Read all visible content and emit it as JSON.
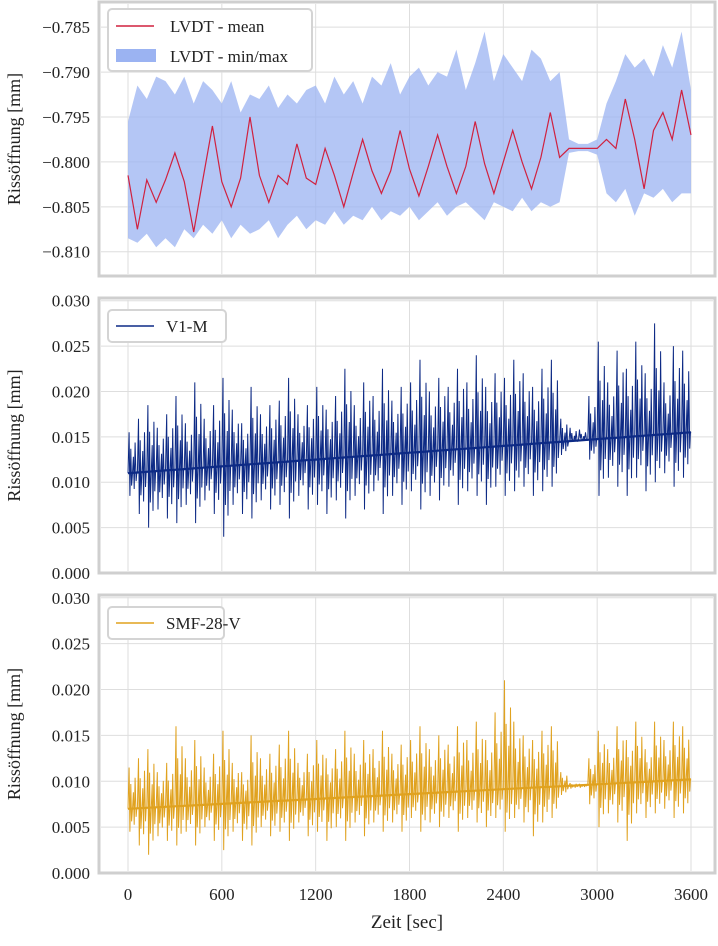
{
  "chart_data": [
    {
      "type": "line",
      "panel": "top",
      "ylabel": "Rissöffnung [mm]",
      "xlabel": "",
      "xlim": [
        0,
        3600
      ],
      "ylim": [
        -0.8127,
        -0.7822
      ],
      "yticks": [
        -0.785,
        -0.79,
        -0.795,
        -0.8,
        -0.805,
        -0.81
      ],
      "ytick_labels": [
        "−0.785",
        "−0.790",
        "−0.795",
        "−0.800",
        "−0.805",
        "−0.810"
      ],
      "grid": true,
      "legend_position": "top-left",
      "legend": [
        "LVDT - mean",
        "LVDT - min/max"
      ],
      "colors": {
        "mean": "#d0213f",
        "band": "#9bb3f2"
      },
      "x_step_sec": 60,
      "series": [
        {
          "name": "LVDT - mean",
          "values": [
            -0.8015,
            -0.8075,
            -0.802,
            -0.8045,
            -0.802,
            -0.799,
            -0.8022,
            -0.8078,
            -0.8018,
            -0.796,
            -0.8022,
            -0.805,
            -0.8018,
            -0.795,
            -0.8015,
            -0.8045,
            -0.8015,
            -0.8025,
            -0.798,
            -0.8018,
            -0.8025,
            -0.7985,
            -0.8015,
            -0.805,
            -0.8012,
            -0.7975,
            -0.801,
            -0.8035,
            -0.801,
            -0.7965,
            -0.8008,
            -0.8038,
            -0.8005,
            -0.797,
            -0.8005,
            -0.8035,
            -0.8005,
            -0.7955,
            -0.8002,
            -0.8035,
            -0.8,
            -0.7965,
            -0.8,
            -0.803,
            -0.7995,
            -0.7945,
            -0.7995,
            -0.7985,
            -0.7985,
            -0.7985,
            -0.7985,
            -0.7975,
            -0.7985,
            -0.793,
            -0.7975,
            -0.803,
            -0.7965,
            -0.7945,
            -0.7975,
            -0.792,
            -0.797
          ]
        },
        {
          "name": "LVDT - max",
          "values": [
            -0.7955,
            -0.7915,
            -0.793,
            -0.7905,
            -0.791,
            -0.7925,
            -0.7905,
            -0.7935,
            -0.791,
            -0.792,
            -0.7935,
            -0.791,
            -0.7945,
            -0.7925,
            -0.793,
            -0.7915,
            -0.794,
            -0.7925,
            -0.7935,
            -0.792,
            -0.7915,
            -0.7935,
            -0.7905,
            -0.7925,
            -0.791,
            -0.7935,
            -0.7905,
            -0.7915,
            -0.789,
            -0.7925,
            -0.7905,
            -0.7895,
            -0.7915,
            -0.79,
            -0.7905,
            -0.7875,
            -0.792,
            -0.789,
            -0.7855,
            -0.791,
            -0.788,
            -0.7895,
            -0.791,
            -0.7875,
            -0.7885,
            -0.791,
            -0.79,
            -0.7975,
            -0.798,
            -0.798,
            -0.7975,
            -0.7935,
            -0.791,
            -0.788,
            -0.7895,
            -0.7885,
            -0.7905,
            -0.787,
            -0.7895,
            -0.7855,
            -0.792
          ]
        },
        {
          "name": "LVDT - min",
          "values": [
            -0.8085,
            -0.809,
            -0.808,
            -0.8095,
            -0.8085,
            -0.8095,
            -0.8075,
            -0.8085,
            -0.807,
            -0.808,
            -0.8065,
            -0.8085,
            -0.807,
            -0.808,
            -0.8075,
            -0.8065,
            -0.8085,
            -0.807,
            -0.806,
            -0.8075,
            -0.8065,
            -0.807,
            -0.8055,
            -0.807,
            -0.806,
            -0.8065,
            -0.805,
            -0.8065,
            -0.8055,
            -0.806,
            -0.805,
            -0.8065,
            -0.8055,
            -0.8045,
            -0.806,
            -0.805,
            -0.8045,
            -0.8055,
            -0.8065,
            -0.8045,
            -0.805,
            -0.8055,
            -0.804,
            -0.8055,
            -0.8045,
            -0.805,
            -0.8045,
            -0.799,
            -0.7988,
            -0.7988,
            -0.7992,
            -0.8035,
            -0.8045,
            -0.803,
            -0.806,
            -0.8035,
            -0.804,
            -0.803,
            -0.8045,
            -0.8035,
            -0.8035
          ]
        }
      ]
    },
    {
      "type": "line",
      "panel": "middle",
      "ylabel": "Rissöffnung [mm]",
      "xlabel": "",
      "xlim": [
        0,
        3600
      ],
      "ylim": [
        0,
        0.0303
      ],
      "yticks": [
        0,
        0.005,
        0.01,
        0.015,
        0.02,
        0.025,
        0.03
      ],
      "ytick_labels": [
        "0.000",
        "0.005",
        "0.010",
        "0.015",
        "0.020",
        "0.025",
        "0.030"
      ],
      "grid": true,
      "legend_position": "top-left",
      "legend": [
        "V1-M"
      ],
      "color": "#0d2a85",
      "x_step_sec": 60,
      "baseline": [
        0.011,
        0.0155
      ],
      "series": [
        {
          "name": "V1-M max",
          "values": [
            0.0155,
            0.017,
            0.0185,
            0.016,
            0.0175,
            0.0195,
            0.0165,
            0.021,
            0.017,
            0.0185,
            0.0215,
            0.018,
            0.0165,
            0.0205,
            0.0175,
            0.0185,
            0.019,
            0.0215,
            0.0175,
            0.0185,
            0.0205,
            0.018,
            0.0195,
            0.0225,
            0.0185,
            0.021,
            0.0195,
            0.0225,
            0.019,
            0.0205,
            0.021,
            0.0235,
            0.02,
            0.0215,
            0.0205,
            0.0225,
            0.021,
            0.024,
            0.0205,
            0.022,
            0.0215,
            0.0235,
            0.022,
            0.0205,
            0.0225,
            0.0235,
            0.017,
            0.016,
            0.0158,
            0.0195,
            0.0255,
            0.021,
            0.0245,
            0.0225,
            0.0255,
            0.022,
            0.0275,
            0.021,
            0.025,
            0.0245,
            0.022
          ]
        },
        {
          "name": "V1-M min",
          "values": [
            0.0085,
            0.0065,
            0.005,
            0.007,
            0.006,
            0.0055,
            0.0075,
            0.0055,
            0.008,
            0.0065,
            0.004,
            0.0075,
            0.0065,
            0.006,
            0.008,
            0.007,
            0.0075,
            0.006,
            0.0085,
            0.007,
            0.0075,
            0.0065,
            0.008,
            0.006,
            0.0085,
            0.007,
            0.009,
            0.0065,
            0.0085,
            0.0075,
            0.009,
            0.007,
            0.0085,
            0.008,
            0.0095,
            0.0075,
            0.009,
            0.0085,
            0.0075,
            0.0095,
            0.0085,
            0.009,
            0.0095,
            0.0085,
            0.009,
            0.0095,
            0.013,
            0.0145,
            0.0148,
            0.0125,
            0.0085,
            0.0105,
            0.0095,
            0.0085,
            0.0105,
            0.009,
            0.01,
            0.011,
            0.0095,
            0.0105,
            0.0115
          ]
        }
      ]
    },
    {
      "type": "line",
      "panel": "bottom",
      "ylabel": "Rissöffnung [mm]",
      "xlabel": "Zeit [sec]",
      "xlim": [
        0,
        3600
      ],
      "xticks": [
        0,
        600,
        1200,
        1800,
        2400,
        3000,
        3600
      ],
      "xtick_labels": [
        "0",
        "600",
        "1200",
        "1800",
        "2400",
        "3000",
        "3600"
      ],
      "ylim": [
        0,
        0.0303
      ],
      "yticks": [
        0,
        0.005,
        0.01,
        0.015,
        0.02,
        0.025,
        0.03
      ],
      "ytick_labels": [
        "0.000",
        "0.005",
        "0.010",
        "0.015",
        "0.020",
        "0.025",
        "0.030"
      ],
      "grid": true,
      "legend_position": "top-left",
      "legend": [
        "SMF-28-V"
      ],
      "color": "#e0a21f",
      "x_step_sec": 60,
      "baseline": [
        0.007,
        0.0102
      ],
      "series": [
        {
          "name": "SMF-28-V max",
          "values": [
            0.0115,
            0.0125,
            0.0135,
            0.011,
            0.012,
            0.016,
            0.0125,
            0.0145,
            0.0115,
            0.013,
            0.0155,
            0.012,
            0.011,
            0.015,
            0.0125,
            0.013,
            0.014,
            0.0155,
            0.012,
            0.013,
            0.0145,
            0.0125,
            0.0135,
            0.0155,
            0.013,
            0.0145,
            0.0135,
            0.0155,
            0.013,
            0.014,
            0.0145,
            0.016,
            0.0135,
            0.015,
            0.014,
            0.016,
            0.0145,
            0.0165,
            0.0145,
            0.0175,
            0.021,
            0.0165,
            0.015,
            0.0145,
            0.0155,
            0.016,
            0.011,
            0.0098,
            0.0097,
            0.0125,
            0.0155,
            0.0135,
            0.016,
            0.0145,
            0.0165,
            0.0135,
            0.0165,
            0.0145,
            0.0165,
            0.016,
            0.014
          ]
        },
        {
          "name": "SMF-28-V min",
          "values": [
            0.0045,
            0.003,
            0.002,
            0.004,
            0.0035,
            0.003,
            0.0045,
            0.003,
            0.005,
            0.0035,
            0.0025,
            0.0045,
            0.0035,
            0.003,
            0.005,
            0.004,
            0.0045,
            0.0035,
            0.0055,
            0.004,
            0.0045,
            0.0035,
            0.005,
            0.0035,
            0.0055,
            0.004,
            0.0055,
            0.0045,
            0.0055,
            0.0045,
            0.006,
            0.0045,
            0.0055,
            0.005,
            0.006,
            0.0045,
            0.006,
            0.0055,
            0.005,
            0.006,
            0.0045,
            0.006,
            0.0055,
            0.004,
            0.0055,
            0.006,
            0.0085,
            0.0092,
            0.0093,
            0.0075,
            0.005,
            0.0065,
            0.0055,
            0.0035,
            0.0065,
            0.006,
            0.0065,
            0.007,
            0.006,
            0.0065,
            0.007
          ]
        }
      ]
    }
  ]
}
